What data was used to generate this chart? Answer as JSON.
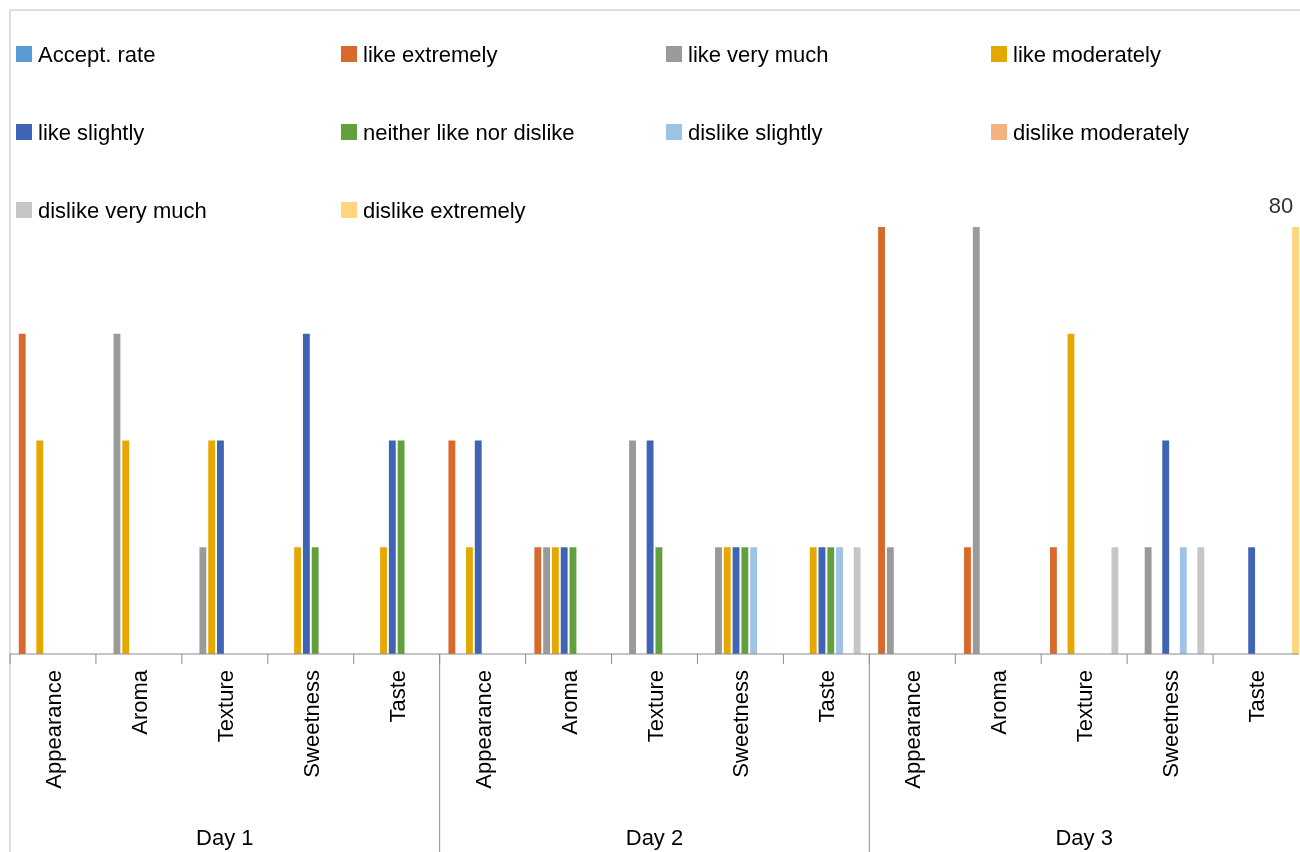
{
  "chart_data": {
    "type": "bar",
    "categories": [
      "Appearance",
      "Aroma",
      "Texture",
      "Sweetness",
      "Taste",
      "Appearance",
      "Aroma",
      "Texture",
      "Sweetness",
      "Taste",
      "Appearance",
      "Aroma",
      "Texture",
      "Sweetness",
      "Taste"
    ],
    "annotations": [
      "Day 1",
      "Day 2",
      "Day 3"
    ],
    "legend": "top",
    "series": [
      {
        "name": "Accept. rate",
        "color": "#5b9bd5",
        "values": [
          null,
          null,
          null,
          null,
          null,
          null,
          null,
          null,
          null,
          null,
          null,
          null,
          null,
          null,
          null
        ]
      },
      {
        "name": "like extremely",
        "color": "#d9692a",
        "values": [
          60,
          null,
          null,
          null,
          null,
          40,
          20,
          null,
          null,
          null,
          80,
          20,
          20,
          null,
          null
        ]
      },
      {
        "name": "like very much",
        "color": "#9a9a9a",
        "values": [
          null,
          60,
          20,
          null,
          null,
          null,
          20,
          40,
          20,
          null,
          20,
          80,
          null,
          20,
          null
        ]
      },
      {
        "name": "like moderately",
        "color": "#e6a800",
        "values": [
          40,
          40,
          40,
          20,
          20,
          20,
          20,
          null,
          20,
          20,
          null,
          null,
          60,
          null,
          null
        ]
      },
      {
        "name": "like slightly",
        "color": "#3f63b5",
        "values": [
          null,
          null,
          40,
          60,
          40,
          40,
          20,
          40,
          20,
          20,
          null,
          null,
          null,
          40,
          20
        ]
      },
      {
        "name": "neither like nor dislike",
        "color": "#62a03e",
        "values": [
          null,
          null,
          null,
          20,
          40,
          null,
          20,
          20,
          20,
          20,
          null,
          null,
          null,
          null,
          null
        ]
      },
      {
        "name": "dislike slightly",
        "color": "#9dc3e6",
        "values": [
          null,
          null,
          null,
          null,
          null,
          null,
          null,
          null,
          20,
          20,
          null,
          null,
          null,
          20,
          null
        ]
      },
      {
        "name": "dislike moderately",
        "color": "#f4b183",
        "values": [
          null,
          null,
          null,
          null,
          null,
          null,
          null,
          null,
          null,
          null,
          null,
          null,
          null,
          null,
          null
        ]
      },
      {
        "name": "dislike very much",
        "color": "#c6c6c6",
        "values": [
          null,
          null,
          null,
          null,
          null,
          null,
          null,
          null,
          null,
          20,
          null,
          null,
          20,
          20,
          null
        ]
      },
      {
        "name": "dislike extremely",
        "color": "#ffd57f",
        "values": [
          null,
          null,
          null,
          null,
          null,
          null,
          null,
          null,
          null,
          null,
          null,
          null,
          null,
          null,
          80
        ],
        "value_labels": [
          null,
          null,
          null,
          null,
          null,
          null,
          null,
          null,
          null,
          null,
          null,
          null,
          null,
          null,
          "80"
        ]
      }
    ]
  }
}
